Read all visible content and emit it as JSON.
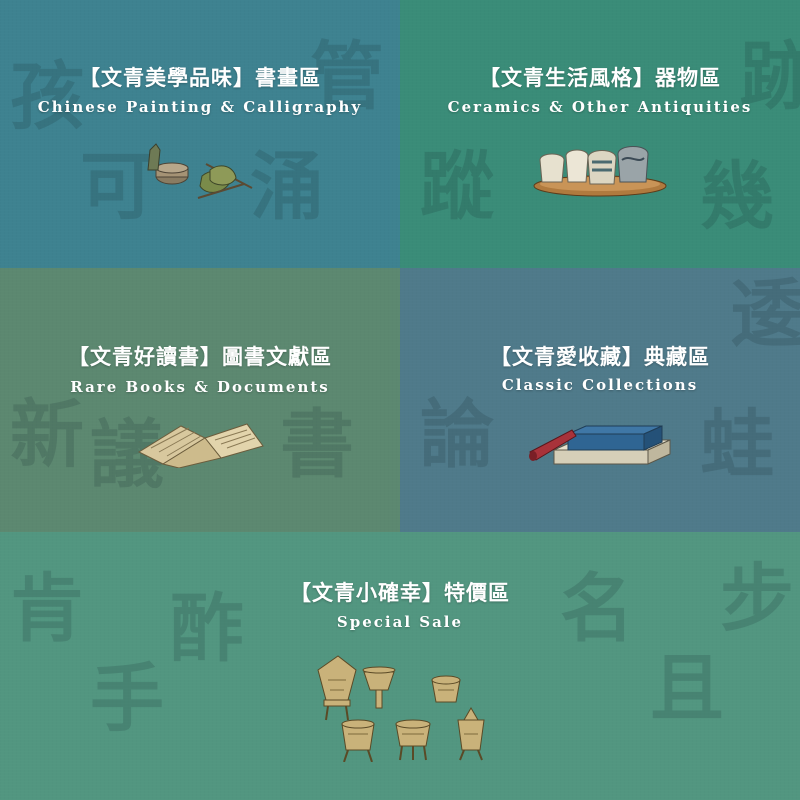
{
  "tiles": {
    "painting": {
      "title_zh": "【文青美學品味】書畫區",
      "title_en": "Chinese Painting & Calligraphy",
      "bg": "#3e8290",
      "icon": "brush-and-ink-icon"
    },
    "ceramics": {
      "title_zh": "【文青生活風格】器物區",
      "title_en": "Ceramics & Other Antiquities",
      "bg": "#3a8c78",
      "icon": "ceramic-jars-icon"
    },
    "books": {
      "title_zh": "【文青好讀書】圖書文獻區",
      "title_en": "Rare Books & Documents",
      "bg": "#5c8870",
      "icon": "open-book-icon"
    },
    "collections": {
      "title_zh": "【文青愛收藏】典藏區",
      "title_en": "Classic Collections",
      "bg": "#4f7a8a",
      "icon": "stacked-books-icon"
    },
    "sale": {
      "title_zh": "【文青小確幸】特價區",
      "title_en": "Special Sale",
      "bg": "#529680",
      "icon": "bronze-vessels-icon"
    }
  }
}
